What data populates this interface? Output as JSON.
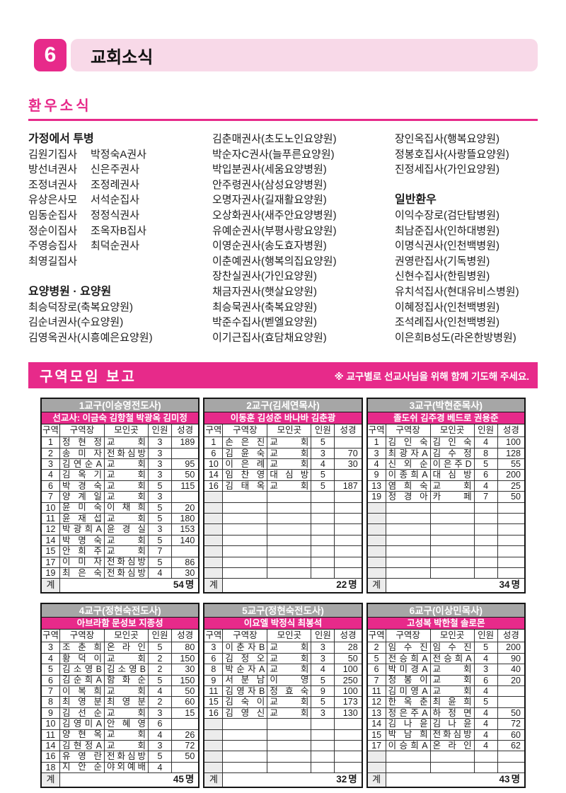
{
  "colors": {
    "accent": "#e72a8a",
    "light_pink": "#f8d9e8",
    "table_title_gray": "#a6a6a6"
  },
  "page": {
    "number": "6",
    "title": "교회소식"
  },
  "sick": {
    "title": "환우소식",
    "col1": {
      "section1_title": "가정에서 투병",
      "home_rows": [
        [
          "김원기집사",
          "박정숙A권사"
        ],
        [
          "방선녀권사",
          "신은주권사"
        ],
        [
          "조정녀권사",
          "조정례권사"
        ],
        [
          "유상은사모",
          "서석순집사"
        ],
        [
          "임동순집사",
          "정정식권사"
        ],
        [
          "정순이집사",
          "조옥자B집사"
        ],
        [
          "주영승집사",
          "최덕순권사"
        ],
        [
          "최영길집사",
          ""
        ]
      ],
      "section2_title": "요양병원 · 요양원",
      "items": [
        "최승덕장로(축복요양원)",
        "김순녀권사(수요양원)",
        "김영옥권사(시흥예은요양원)"
      ]
    },
    "col2": {
      "items": [
        "김춘매권사(초도노인요양원)",
        "박순자C권사(늘푸른요양원)",
        "박입분권사(세움요양병원)",
        "안주령권사(삼성요양병원)",
        "오명자권사(길재활요양원)",
        "오상화권사(새주안요양병원)",
        "유예순권사(부평사랑요양원)",
        "이영순권사(송도효자병원)",
        "이춘예권사(행복의집요양원)",
        "장찬실권사(가인요양원)",
        "채금자권사(햇살요양원)",
        "최승묵권사(축복요양원)",
        "박준수집사(벧엘요양원)",
        "이기근집사(효담채요양원)"
      ]
    },
    "col3": {
      "top_items": [
        "장인옥집사(행복요양원)",
        "정봉호집사(사랑뜰요양원)",
        "진정세집사(가인요양원)"
      ],
      "section_title": "일반환우",
      "items": [
        "이익수장로(검단탑병원)",
        "최남준집사(인하대병원)",
        "이명식권사(인천백병원)",
        "권영란집사(기독병원)",
        "신현수집사(한림병원)",
        "유치석집사(현대유비스병원)",
        "이혜정집사(인천백병원)",
        "조석례집사(인천백병원)",
        "이은희B성도(라온한방병원)"
      ]
    }
  },
  "report": {
    "title": "구역모임 보고",
    "note": "※ 교구별로 선교사님을 위해 함께 기도해 주세요.",
    "col_headers": [
      "구역",
      "구역장",
      "모인곳",
      "인원",
      "성경"
    ],
    "total_label": "계",
    "total_unit": "명",
    "groups": [
      {
        "title": "1교구(이승영전도사)",
        "missionaries": "선교사: 이금숙 김항철 박광옥 김미정",
        "rows": [
          [
            "1",
            "정현정",
            "교회",
            "3",
            "189"
          ],
          [
            "2",
            "송미자",
            "전화심방",
            "3",
            ""
          ],
          [
            "3",
            "김연순A",
            "교회",
            "3",
            "95"
          ],
          [
            "4",
            "김옥기",
            "교회",
            "3",
            "50"
          ],
          [
            "6",
            "박경숙",
            "교회",
            "5",
            "115"
          ],
          [
            "7",
            "양계일",
            "교회",
            "3",
            ""
          ],
          [
            "10",
            "윤미숙",
            "이채희",
            "5",
            "20"
          ],
          [
            "11",
            "윤재섭",
            "교회",
            "5",
            "180"
          ],
          [
            "12",
            "박광희A",
            "윤경실",
            "3",
            "153"
          ],
          [
            "14",
            "박명숙",
            "교회",
            "5",
            "140"
          ],
          [
            "15",
            "안희주",
            "교회",
            "7",
            ""
          ],
          [
            "17",
            "이미자",
            "전화심방",
            "5",
            "86"
          ],
          [
            "19",
            "최은숙",
            "전화심방",
            "4",
            "30"
          ]
        ],
        "empty_rows": 0,
        "total": "54"
      },
      {
        "title": "2교구(김세연목사)",
        "missionaries": "이동훈 김성준 바나바 김춘광",
        "rows": [
          [
            "1",
            "손은진",
            "교회",
            "5",
            ""
          ],
          [
            "6",
            "김윤숙",
            "교회",
            "3",
            "70"
          ],
          [
            "10",
            "이은례",
            "교회",
            "4",
            "30"
          ],
          [
            "14",
            "임찬영",
            "대심방",
            "5",
            ""
          ],
          [
            "16",
            "김태옥",
            "교회",
            "5",
            "187"
          ]
        ],
        "empty_rows": 8,
        "total": "22"
      },
      {
        "title": "3교구(박현준목사)",
        "missionaries": "졸도쉬 김주경 베드로 권용준",
        "rows": [
          [
            "1",
            "김인숙",
            "김인숙",
            "4",
            "100"
          ],
          [
            "3",
            "최광자A",
            "김수정",
            "8",
            "128"
          ],
          [
            "4",
            "신외순",
            "이은주D",
            "5",
            "55"
          ],
          [
            "9",
            "이종희A",
            "대심방",
            "6",
            "200"
          ],
          [
            "13",
            "염희숙",
            "교회",
            "4",
            "25"
          ],
          [
            "19",
            "정경아",
            "카페",
            "7",
            "50"
          ]
        ],
        "empty_rows": 7,
        "total": "34"
      },
      {
        "title": "4교구(정현숙전도사)",
        "missionaries": "아브라함 문성보 지종성",
        "rows": [
          [
            "3",
            "조춘희",
            "온라인",
            "5",
            "80"
          ],
          [
            "4",
            "황덕이",
            "교회",
            "2",
            "150"
          ],
          [
            "5",
            "김소영B",
            "김소영B",
            "2",
            "30"
          ],
          [
            "6",
            "김순희A",
            "함화순",
            "5",
            "150"
          ],
          [
            "7",
            "이복희",
            "교회",
            "4",
            "50"
          ],
          [
            "8",
            "최영분",
            "최영분",
            "2",
            "60"
          ],
          [
            "9",
            "김선순",
            "교회",
            "3",
            "15"
          ],
          [
            "10",
            "김영미A",
            "안혜영",
            "6",
            ""
          ],
          [
            "11",
            "양현옥",
            "교회",
            "4",
            "26"
          ],
          [
            "14",
            "김현정A",
            "교회",
            "3",
            "72"
          ],
          [
            "16",
            "유영란",
            "전화심방",
            "5",
            "50"
          ],
          [
            "18",
            "지안순",
            "야외예배",
            "4",
            ""
          ]
        ],
        "empty_rows": 0,
        "total": "45"
      },
      {
        "title": "5교구(정현숙전도사)",
        "missionaries": "이요엘 박정식 최봉석",
        "rows": [
          [
            "3",
            "이춘자B",
            "교회",
            "3",
            "28"
          ],
          [
            "6",
            "김정오",
            "교회",
            "3",
            "50"
          ],
          [
            "8",
            "박순자A",
            "교회",
            "4",
            "100"
          ],
          [
            "9",
            "서분남",
            "이영",
            "5",
            "250"
          ],
          [
            "11",
            "김영자B",
            "정효숙",
            "9",
            "100"
          ],
          [
            "15",
            "김숙이",
            "교회",
            "5",
            "173"
          ],
          [
            "16",
            "김영신",
            "교회",
            "3",
            "130"
          ]
        ],
        "empty_rows": 5,
        "total": "32"
      },
      {
        "title": "6교구(이상민목사)",
        "missionaries": "고성복 박한철 솔로몬",
        "rows": [
          [
            "2",
            "임수진",
            "임수진",
            "5",
            "200"
          ],
          [
            "5",
            "전승희A",
            "전승희A",
            "4",
            "90"
          ],
          [
            "6",
            "박미경A",
            "교회",
            "3",
            "40"
          ],
          [
            "7",
            "정봉이",
            "교회",
            "6",
            "20"
          ],
          [
            "11",
            "김미영A",
            "교회",
            "4",
            ""
          ],
          [
            "12",
            "한옥춘",
            "최윤희",
            "5",
            ""
          ],
          [
            "13",
            "정은주A",
            "하정면",
            "4",
            "50"
          ],
          [
            "14",
            "김나윤",
            "김나윤",
            "4",
            "72"
          ],
          [
            "15",
            "박남희",
            "전화심방",
            "4",
            "60"
          ],
          [
            "17",
            "이승희A",
            "온라인",
            "4",
            "62"
          ]
        ],
        "empty_rows": 2,
        "total": "43"
      }
    ]
  }
}
